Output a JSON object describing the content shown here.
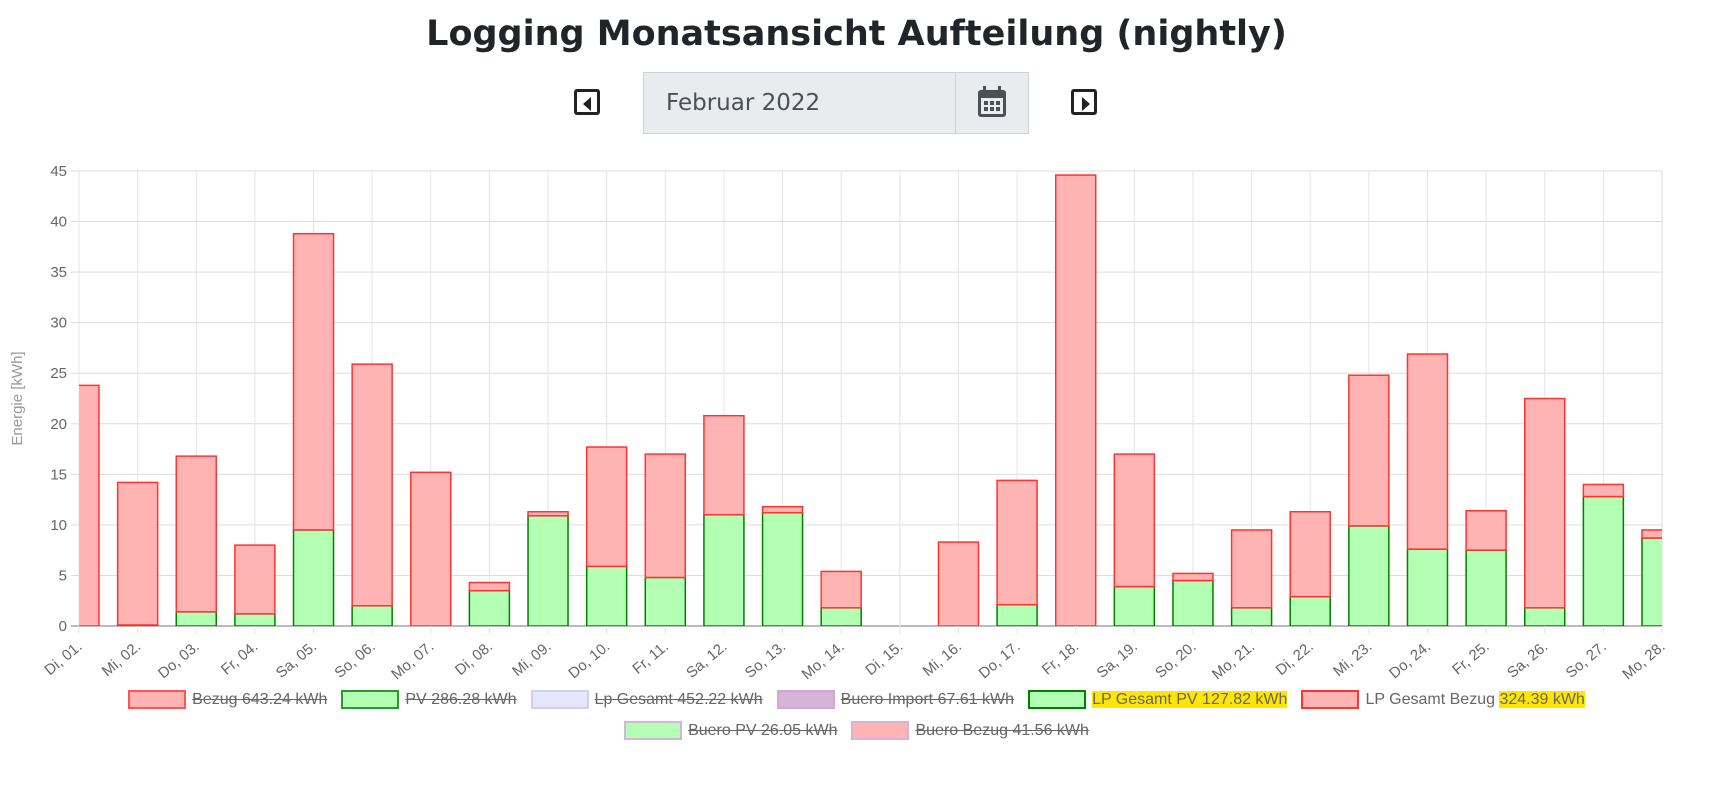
{
  "header": {
    "title": "Logging Monatsansicht Aufteilung (nightly)",
    "date_value": "Februar 2022",
    "prev_icon": "caret-left-square-icon",
    "next_icon": "caret-right-square-icon",
    "calendar_icon": "calendar-icon"
  },
  "chart_data": {
    "type": "bar",
    "stacked": true,
    "ylabel": "Energie [kWh]",
    "xlabel": "",
    "ylim": [
      0,
      45
    ],
    "yticks": [
      0,
      5,
      10,
      15,
      20,
      25,
      30,
      35,
      40,
      45
    ],
    "grid": true,
    "categories": [
      "Di, 01.",
      "Mi, 02.",
      "Do, 03.",
      "Fr, 04.",
      "Sa, 05.",
      "So, 06.",
      "Mo, 07.",
      "Di, 08.",
      "Mi, 09.",
      "Do, 10.",
      "Fr, 11.",
      "Sa, 12.",
      "So, 13.",
      "Mo, 14.",
      "Di, 15.",
      "Mi, 16.",
      "Do, 17.",
      "Fr, 18.",
      "Sa, 19.",
      "So, 20.",
      "Mo, 21.",
      "Di, 22.",
      "Mi, 23.",
      "Do, 24.",
      "Fr, 25.",
      "Sa, 26.",
      "So, 27.",
      "Mo, 28."
    ],
    "series": [
      {
        "name": "LP Gesamt PV",
        "fill": "#b3ffb3",
        "stroke": "#008000",
        "values": [
          0,
          0.1,
          1.4,
          1.2,
          9.5,
          2.0,
          0,
          3.5,
          10.9,
          5.9,
          4.8,
          11.0,
          11.2,
          1.8,
          0,
          0,
          2.1,
          0,
          3.9,
          4.5,
          1.8,
          2.9,
          9.9,
          7.6,
          7.5,
          1.8,
          12.8,
          8.7
        ]
      },
      {
        "name": "LP Gesamt Bezug",
        "fill": "#ffb3b3",
        "stroke": "#ff3333",
        "values": [
          23.8,
          14.1,
          15.4,
          6.8,
          29.3,
          23.9,
          15.2,
          0.8,
          0.4,
          11.8,
          12.2,
          9.8,
          0.6,
          3.6,
          0,
          8.3,
          12.3,
          44.6,
          13.1,
          0.7,
          7.7,
          8.4,
          14.9,
          19.3,
          3.9,
          20.7,
          1.2,
          0.8
        ]
      }
    ],
    "legend_position": "bottom",
    "legend": [
      {
        "label": "Bezug 643.24 kWh",
        "fill": "#ffb3b3",
        "stroke": "#ff5555",
        "hidden": true
      },
      {
        "label": "PV 286.28 kWh",
        "fill": "#b3ffb3",
        "stroke": "#2a9a2a",
        "hidden": true
      },
      {
        "label": "Lp Gesamt 452.22 kWh",
        "fill": "#e6e6ff",
        "stroke": "#d0d0f0",
        "hidden": true
      },
      {
        "label": "Buero Import 67.61 kWh",
        "fill": "#d8b3d8",
        "stroke": "#d0a8d0",
        "hidden": true
      },
      {
        "label_a": "LP Gesamt PV ",
        "label_b": "127.82 kWh",
        "fill": "#b3ffb3",
        "stroke": "#008000",
        "hidden": false,
        "highlight": "both"
      },
      {
        "label_a": "LP Gesamt Bezug ",
        "label_b": "324.39 kWh",
        "fill": "#ffb3b3",
        "stroke": "#ff3333",
        "hidden": false,
        "highlight": "value"
      },
      {
        "label": "Buero PV 26.05 kWh",
        "fill": "#b3ffb3",
        "stroke": "#d8b3d8",
        "hidden": true
      },
      {
        "label": "Buero Bezug 41.56 kWh",
        "fill": "#ffb3b3",
        "stroke": "#d8b3d8",
        "hidden": true
      }
    ]
  }
}
